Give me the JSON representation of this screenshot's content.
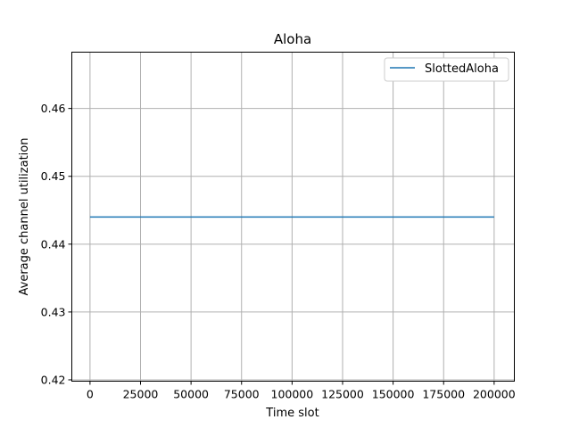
{
  "chart_data": {
    "type": "line",
    "title": "Aloha",
    "xlabel": "Time slot",
    "ylabel": "Average channel utilization",
    "xlim": [
      -9000,
      210000
    ],
    "ylim": [
      0.4198,
      0.4683
    ],
    "xticks": [
      0,
      25000,
      50000,
      75000,
      100000,
      125000,
      150000,
      175000,
      200000
    ],
    "xtick_labels": [
      "0",
      "25000",
      "50000",
      "75000",
      "100000",
      "125000",
      "150000",
      "175000",
      "200000"
    ],
    "yticks": [
      0.42,
      0.43,
      0.44,
      0.45,
      0.46
    ],
    "ytick_labels": [
      "0.42",
      "0.43",
      "0.44",
      "0.45",
      "0.46"
    ],
    "grid": true,
    "legend_position": "top-right",
    "series": [
      {
        "name": "SlottedAloha",
        "color": "#1f77b4",
        "x": [
          0,
          200000
        ],
        "y": [
          0.444,
          0.444
        ]
      }
    ]
  }
}
